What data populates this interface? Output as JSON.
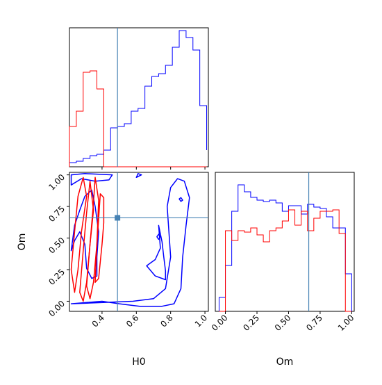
{
  "chart_data": {
    "type": "corner",
    "parameters": [
      "H0",
      "Om"
    ],
    "truths": {
      "H0": 0.49,
      "Om": 0.66
    },
    "truth_color": "#4682b4",
    "series": [
      {
        "color": "#0000ff"
      },
      {
        "color": "#ff0000"
      }
    ],
    "panels": [
      {
        "id": "hist-H0",
        "type": "step-histogram",
        "xlim": [
          0.21,
          1.02
        ],
        "ylim": [
          0,
          1
        ],
        "xticks": [
          "0.4",
          "0.6",
          "0.8",
          "1.0"
        ],
        "xtick_values": [
          0.4,
          0.6,
          0.8,
          1.0
        ],
        "show_tick_labels": false,
        "bins": [
          0.21,
          0.25,
          0.29,
          0.33,
          0.37,
          0.41,
          0.45,
          0.49,
          0.53,
          0.57,
          0.61,
          0.65,
          0.69,
          0.73,
          0.77,
          0.81,
          0.85,
          0.89,
          0.93,
          0.97,
          1.01
        ],
        "counts": [
          [
            0.03,
            0.04,
            0.06,
            0.08,
            0.09,
            0.12,
            0.28,
            0.29,
            0.31,
            0.4,
            0.42,
            0.58,
            0.65,
            0.67,
            0.73,
            0.86,
            0.98,
            0.93,
            0.84,
            0.44,
            0.12
          ],
          [
            0.29,
            0.4,
            0.68,
            0.69,
            0.56,
            0.0,
            0.0,
            0.0,
            0.0,
            0.0,
            0.0,
            0.0,
            0.0,
            0.0,
            0.0,
            0.0,
            0.0,
            0.0,
            0.0,
            0.0,
            0.0
          ]
        ]
      },
      {
        "id": "hist-Om",
        "type": "step-histogram",
        "xlim": [
          -0.08,
          1.02
        ],
        "ylim": [
          0,
          1
        ],
        "xticks": [
          "0.00",
          "0.25",
          "0.50",
          "0.75",
          "1.00"
        ],
        "xtick_values": [
          0.0,
          0.25,
          0.5,
          0.75,
          1.0
        ],
        "xlabel": "Om",
        "bins": [
          -0.05,
          0.0,
          0.05,
          0.1,
          0.15,
          0.2,
          0.25,
          0.3,
          0.35,
          0.4,
          0.45,
          0.5,
          0.55,
          0.6,
          0.65,
          0.7,
          0.75,
          0.8,
          0.85,
          0.9,
          0.95,
          1.0
        ],
        "counts": [
          [
            0.1,
            0.33,
            0.72,
            0.91,
            0.86,
            0.82,
            0.8,
            0.79,
            0.8,
            0.78,
            0.72,
            0.76,
            0.76,
            0.7,
            0.77,
            0.75,
            0.74,
            0.68,
            0.6,
            0.6,
            0.27
          ],
          [
            0.0,
            0.58,
            0.51,
            0.58,
            0.57,
            0.6,
            0.55,
            0.5,
            0.58,
            0.6,
            0.65,
            0.73,
            0.62,
            0.72,
            0.58,
            0.67,
            0.72,
            0.72,
            0.73,
            0.56,
            0.0
          ]
        ]
      },
      {
        "id": "contour-H0-Om",
        "type": "contour",
        "xlim": [
          0.21,
          1.02
        ],
        "ylim": [
          -0.08,
          1.02
        ],
        "xticks": [
          "0.4",
          "0.6",
          "0.8",
          "1.0"
        ],
        "xtick_values": [
          0.4,
          0.6,
          0.8,
          1.0
        ],
        "yticks": [
          "0.00",
          "0.25",
          "0.50",
          "0.75",
          "1.00"
        ],
        "ytick_values": [
          0.0,
          0.25,
          0.5,
          0.75,
          1.0
        ],
        "xlabel": "H0",
        "ylabel": "Om",
        "truth_point": {
          "x": 0.49,
          "y": 0.66
        },
        "contours": [
          {
            "series": 0,
            "points": [
              [
                0.22,
                -0.02
              ],
              [
                0.4,
                0.0
              ],
              [
                0.5,
                -0.02
              ],
              [
                0.62,
                -0.04
              ],
              [
                0.75,
                -0.04
              ],
              [
                0.82,
                -0.02
              ],
              [
                0.86,
                0.1
              ],
              [
                0.87,
                0.35
              ],
              [
                0.89,
                0.6
              ],
              [
                0.91,
                0.82
              ],
              [
                0.88,
                0.95
              ],
              [
                0.84,
                0.97
              ],
              [
                0.8,
                0.9
              ],
              [
                0.78,
                0.75
              ],
              [
                0.79,
                0.55
              ],
              [
                0.8,
                0.35
              ],
              [
                0.77,
                0.1
              ],
              [
                0.7,
                0.02
              ],
              [
                0.58,
                0.0
              ]
            ]
          },
          {
            "series": 0,
            "points": [
              [
                0.66,
                0.28
              ],
              [
                0.71,
                0.2
              ],
              [
                0.77,
                0.17
              ],
              [
                0.77,
                0.24
              ],
              [
                0.76,
                0.35
              ],
              [
                0.75,
                0.47
              ],
              [
                0.73,
                0.6
              ],
              [
                0.74,
                0.42
              ],
              [
                0.71,
                0.33
              ],
              [
                0.68,
                0.3
              ]
            ]
          },
          {
            "series": 0,
            "points": [
              [
                0.22,
                0.4
              ],
              [
                0.24,
                0.6
              ],
              [
                0.27,
                0.72
              ],
              [
                0.3,
                0.83
              ],
              [
                0.34,
                0.88
              ],
              [
                0.36,
                0.75
              ],
              [
                0.38,
                0.55
              ],
              [
                0.37,
                0.35
              ],
              [
                0.37,
                0.2
              ],
              [
                0.34,
                0.18
              ],
              [
                0.31,
                0.26
              ],
              [
                0.3,
                0.45
              ],
              [
                0.27,
                0.55
              ],
              [
                0.24,
                0.48
              ]
            ]
          },
          {
            "series": 0,
            "points": [
              [
                0.22,
                0.92
              ],
              [
                0.28,
                0.97
              ],
              [
                0.36,
                0.95
              ],
              [
                0.44,
                0.96
              ],
              [
                0.46,
                1.0
              ],
              [
                0.3,
                1.01
              ],
              [
                0.22,
                1.0
              ]
            ]
          },
          {
            "series": 0,
            "points": [
              [
                0.6,
                0.98
              ],
              [
                0.63,
                1.0
              ],
              [
                0.61,
                1.01
              ]
            ]
          },
          {
            "series": 0,
            "points": [
              [
                0.85,
                0.81
              ],
              [
                0.86,
                0.79
              ],
              [
                0.87,
                0.8
              ],
              [
                0.86,
                0.82
              ]
            ]
          },
          {
            "series": 0,
            "points": [
              [
                0.72,
                0.51
              ],
              [
                0.73,
                0.53
              ],
              [
                0.74,
                0.51
              ],
              [
                0.73,
                0.49
              ]
            ]
          },
          {
            "series": 1,
            "points": [
              [
                0.22,
                0.25
              ],
              [
                0.24,
                0.55
              ],
              [
                0.26,
                0.83
              ],
              [
                0.29,
                0.98
              ],
              [
                0.31,
                0.83
              ],
              [
                0.28,
                0.55
              ],
              [
                0.26,
                0.25
              ],
              [
                0.24,
                0.07
              ]
            ]
          },
          {
            "series": 1,
            "points": [
              [
                0.27,
                0.07
              ],
              [
                0.29,
                0.4
              ],
              [
                0.31,
                0.7
              ],
              [
                0.33,
                0.95
              ],
              [
                0.35,
                0.72
              ],
              [
                0.33,
                0.45
              ],
              [
                0.31,
                0.15
              ],
              [
                0.29,
                0.0
              ]
            ]
          },
          {
            "series": 1,
            "points": [
              [
                0.31,
                0.12
              ],
              [
                0.33,
                0.45
              ],
              [
                0.35,
                0.78
              ],
              [
                0.36,
                0.98
              ],
              [
                0.38,
                0.8
              ],
              [
                0.37,
                0.45
              ],
              [
                0.35,
                0.15
              ],
              [
                0.33,
                0.02
              ]
            ]
          },
          {
            "series": 1,
            "points": [
              [
                0.36,
                0.15
              ],
              [
                0.37,
                0.45
              ],
              [
                0.38,
                0.65
              ],
              [
                0.39,
                0.85
              ],
              [
                0.41,
                0.82
              ],
              [
                0.41,
                0.62
              ],
              [
                0.4,
                0.45
              ],
              [
                0.38,
                0.18
              ]
            ]
          }
        ]
      }
    ]
  }
}
